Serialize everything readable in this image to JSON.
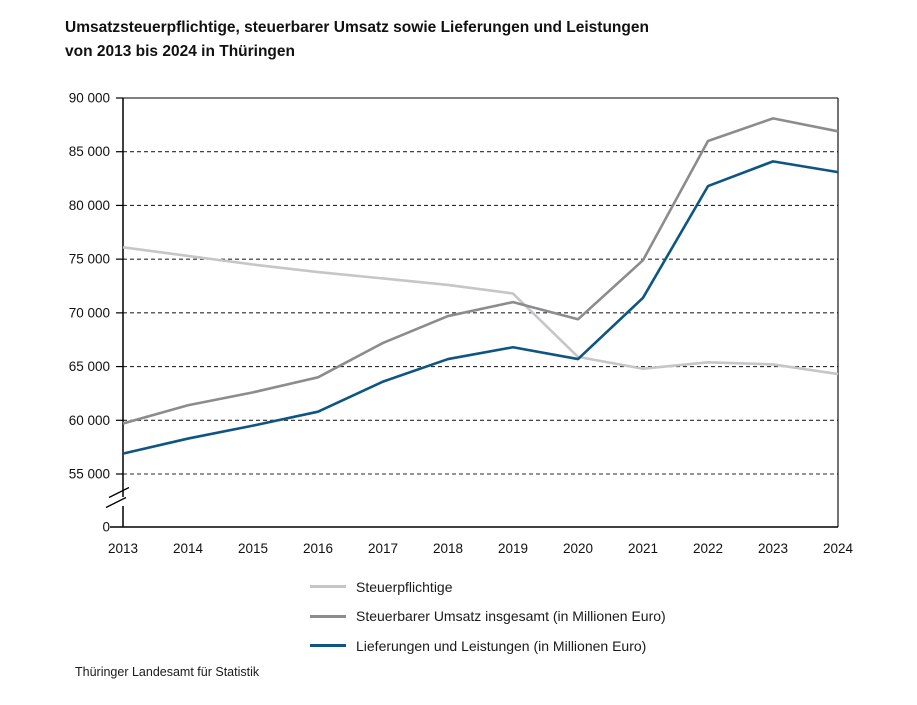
{
  "title": {
    "line1": "Umsatzsteuerpflichtige, steuerbarer Umsatz sowie Lieferungen und Leistungen",
    "line2": "von 2013 bis 2024 in Thüringen"
  },
  "source": "Thüringer Landesamt für Statistik",
  "colors": {
    "series_steuerpflichtige": "#c5c6c8",
    "series_umsatz": "#8a8c8e",
    "series_lieferungen": "#0e5581",
    "axis": "#000000",
    "grid": "#2b2b2b",
    "text": "#111111"
  },
  "chart_data": {
    "type": "line",
    "title": "Umsatzsteuerpflichtige, steuerbarer Umsatz sowie Lieferungen und Leistungen von 2013 bis 2024 in Thüringen",
    "x": [
      2013,
      2014,
      2015,
      2016,
      2017,
      2018,
      2019,
      2020,
      2021,
      2022,
      2023,
      2024
    ],
    "x_labels": [
      "2013",
      "2014",
      "2015",
      "2016",
      "2017",
      "2018",
      "2019",
      "2020",
      "2021",
      "2022",
      "2023",
      "2024"
    ],
    "series": [
      {
        "name": "Steuerpflichtige",
        "color": "#c5c6c8",
        "values": [
          76100,
          75300,
          74500,
          73800,
          73200,
          72600,
          71800,
          65900,
          64800,
          65400,
          65200,
          64300
        ]
      },
      {
        "name": "Steuerbarer Umsatz insgesamt (in Millionen Euro)",
        "color": "#8a8c8e",
        "values": [
          59700,
          61400,
          62600,
          64000,
          67200,
          69700,
          71000,
          69400,
          74900,
          86000,
          88100,
          86900
        ]
      },
      {
        "name": "Lieferungen und Leistungen (in Millionen Euro)",
        "color": "#0e5581",
        "values": [
          56900,
          58300,
          59500,
          60800,
          63600,
          65700,
          66800,
          65700,
          71400,
          81800,
          84100,
          83100
        ]
      }
    ],
    "y_axis": {
      "tick_labels": [
        "90 000",
        "85 000",
        "80 000",
        "75 000",
        "70 000",
        "65 000",
        "60 000",
        "55 000"
      ],
      "tick_values": [
        90000,
        85000,
        80000,
        75000,
        70000,
        65000,
        60000,
        55000
      ],
      "zero_label": "0",
      "axis_break_between": [
        0,
        55000
      ],
      "displayed_range": [
        55000,
        90000
      ]
    },
    "grid": "horizontal-dashed",
    "legend_position": "bottom-center",
    "xlabel": "",
    "ylabel": ""
  }
}
